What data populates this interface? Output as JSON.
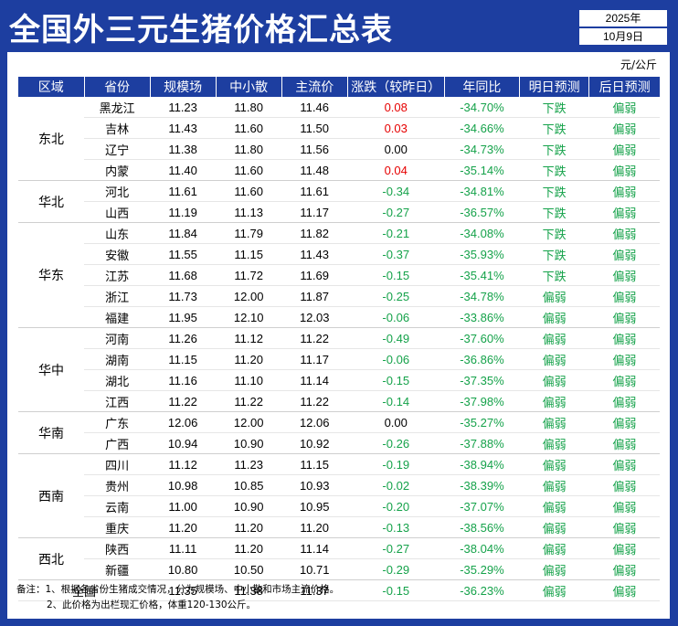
{
  "title": "全国外三元生猪价格汇总表",
  "date": {
    "year": "2025年",
    "day": "10月9日"
  },
  "unit": "元/公斤",
  "headers": [
    "区域",
    "省份",
    "规模场",
    "中小散",
    "主流价",
    "涨跌（较昨日）",
    "年同比",
    "明日预测",
    "后日预测"
  ],
  "colors": {
    "header_bg": "#1d3ea0",
    "up": "#e60000",
    "down": "#15a24a"
  },
  "regions": [
    {
      "name": "东北",
      "rows": [
        {
          "province": "黑龙江",
          "large": "11.23",
          "small": "11.80",
          "main": "11.46",
          "change": "0.08",
          "change_dir": "up",
          "yoy": "-34.70%",
          "tomorrow": "下跌",
          "after": "偏弱"
        },
        {
          "province": "吉林",
          "large": "11.43",
          "small": "11.60",
          "main": "11.50",
          "change": "0.03",
          "change_dir": "up",
          "yoy": "-34.66%",
          "tomorrow": "下跌",
          "after": "偏弱"
        },
        {
          "province": "辽宁",
          "large": "11.38",
          "small": "11.80",
          "main": "11.56",
          "change": "0.00",
          "change_dir": "flat",
          "yoy": "-34.73%",
          "tomorrow": "下跌",
          "after": "偏弱"
        },
        {
          "province": "内蒙",
          "large": "11.40",
          "small": "11.60",
          "main": "11.48",
          "change": "0.04",
          "change_dir": "up",
          "yoy": "-35.14%",
          "tomorrow": "下跌",
          "after": "偏弱"
        }
      ]
    },
    {
      "name": "华北",
      "rows": [
        {
          "province": "河北",
          "large": "11.61",
          "small": "11.60",
          "main": "11.61",
          "change": "-0.34",
          "change_dir": "down",
          "yoy": "-34.81%",
          "tomorrow": "下跌",
          "after": "偏弱"
        },
        {
          "province": "山西",
          "large": "11.19",
          "small": "11.13",
          "main": "11.17",
          "change": "-0.27",
          "change_dir": "down",
          "yoy": "-36.57%",
          "tomorrow": "下跌",
          "after": "偏弱"
        }
      ]
    },
    {
      "name": "华东",
      "rows": [
        {
          "province": "山东",
          "large": "11.84",
          "small": "11.79",
          "main": "11.82",
          "change": "-0.21",
          "change_dir": "down",
          "yoy": "-34.08%",
          "tomorrow": "下跌",
          "after": "偏弱"
        },
        {
          "province": "安徽",
          "large": "11.55",
          "small": "11.15",
          "main": "11.43",
          "change": "-0.37",
          "change_dir": "down",
          "yoy": "-35.93%",
          "tomorrow": "下跌",
          "after": "偏弱"
        },
        {
          "province": "江苏",
          "large": "11.68",
          "small": "11.72",
          "main": "11.69",
          "change": "-0.15",
          "change_dir": "down",
          "yoy": "-35.41%",
          "tomorrow": "下跌",
          "after": "偏弱"
        },
        {
          "province": "浙江",
          "large": "11.73",
          "small": "12.00",
          "main": "11.87",
          "change": "-0.25",
          "change_dir": "down",
          "yoy": "-34.78%",
          "tomorrow": "偏弱",
          "after": "偏弱"
        },
        {
          "province": "福建",
          "large": "11.95",
          "small": "12.10",
          "main": "12.03",
          "change": "-0.06",
          "change_dir": "down",
          "yoy": "-33.86%",
          "tomorrow": "偏弱",
          "after": "偏弱"
        }
      ]
    },
    {
      "name": "华中",
      "rows": [
        {
          "province": "河南",
          "large": "11.26",
          "small": "11.12",
          "main": "11.22",
          "change": "-0.49",
          "change_dir": "down",
          "yoy": "-37.60%",
          "tomorrow": "偏弱",
          "after": "偏弱"
        },
        {
          "province": "湖南",
          "large": "11.15",
          "small": "11.20",
          "main": "11.17",
          "change": "-0.06",
          "change_dir": "down",
          "yoy": "-36.86%",
          "tomorrow": "偏弱",
          "after": "偏弱"
        },
        {
          "province": "湖北",
          "large": "11.16",
          "small": "11.10",
          "main": "11.14",
          "change": "-0.15",
          "change_dir": "down",
          "yoy": "-37.35%",
          "tomorrow": "偏弱",
          "after": "偏弱"
        },
        {
          "province": "江西",
          "large": "11.22",
          "small": "11.22",
          "main": "11.22",
          "change": "-0.14",
          "change_dir": "down",
          "yoy": "-37.98%",
          "tomorrow": "偏弱",
          "after": "偏弱"
        }
      ]
    },
    {
      "name": "华南",
      "rows": [
        {
          "province": "广东",
          "large": "12.06",
          "small": "12.00",
          "main": "12.06",
          "change": "0.00",
          "change_dir": "flat",
          "yoy": "-35.27%",
          "tomorrow": "偏弱",
          "after": "偏弱"
        },
        {
          "province": "广西",
          "large": "10.94",
          "small": "10.90",
          "main": "10.92",
          "change": "-0.26",
          "change_dir": "down",
          "yoy": "-37.88%",
          "tomorrow": "偏弱",
          "after": "偏弱"
        }
      ]
    },
    {
      "name": "西南",
      "rows": [
        {
          "province": "四川",
          "large": "11.12",
          "small": "11.23",
          "main": "11.15",
          "change": "-0.19",
          "change_dir": "down",
          "yoy": "-38.94%",
          "tomorrow": "偏弱",
          "after": "偏弱"
        },
        {
          "province": "贵州",
          "large": "10.98",
          "small": "10.85",
          "main": "10.93",
          "change": "-0.02",
          "change_dir": "down",
          "yoy": "-38.39%",
          "tomorrow": "偏弱",
          "after": "偏弱"
        },
        {
          "province": "云南",
          "large": "11.00",
          "small": "10.90",
          "main": "10.95",
          "change": "-0.20",
          "change_dir": "down",
          "yoy": "-37.07%",
          "tomorrow": "偏弱",
          "after": "偏弱"
        },
        {
          "province": "重庆",
          "large": "11.20",
          "small": "11.20",
          "main": "11.20",
          "change": "-0.13",
          "change_dir": "down",
          "yoy": "-38.56%",
          "tomorrow": "偏弱",
          "after": "偏弱"
        }
      ]
    },
    {
      "name": "西北",
      "rows": [
        {
          "province": "陕西",
          "large": "11.11",
          "small": "11.20",
          "main": "11.14",
          "change": "-0.27",
          "change_dir": "down",
          "yoy": "-38.04%",
          "tomorrow": "偏弱",
          "after": "偏弱"
        },
        {
          "province": "新疆",
          "large": "10.80",
          "small": "10.50",
          "main": "10.71",
          "change": "-0.29",
          "change_dir": "down",
          "yoy": "-35.29%",
          "tomorrow": "偏弱",
          "after": "偏弱"
        }
      ]
    }
  ],
  "national": {
    "label": "全国",
    "large": "11.35",
    "small": "11.38",
    "main": "11.37",
    "change": "-0.15",
    "change_dir": "down",
    "yoy": "-36.23%",
    "tomorrow": "偏弱",
    "after": "偏弱"
  },
  "notes": [
    "备注：1、根据各省份生猪成交情况，分为规模场、中小散和市场主流价格。",
    "2、此价格为出栏现汇价格，体重120-130公斤。"
  ]
}
